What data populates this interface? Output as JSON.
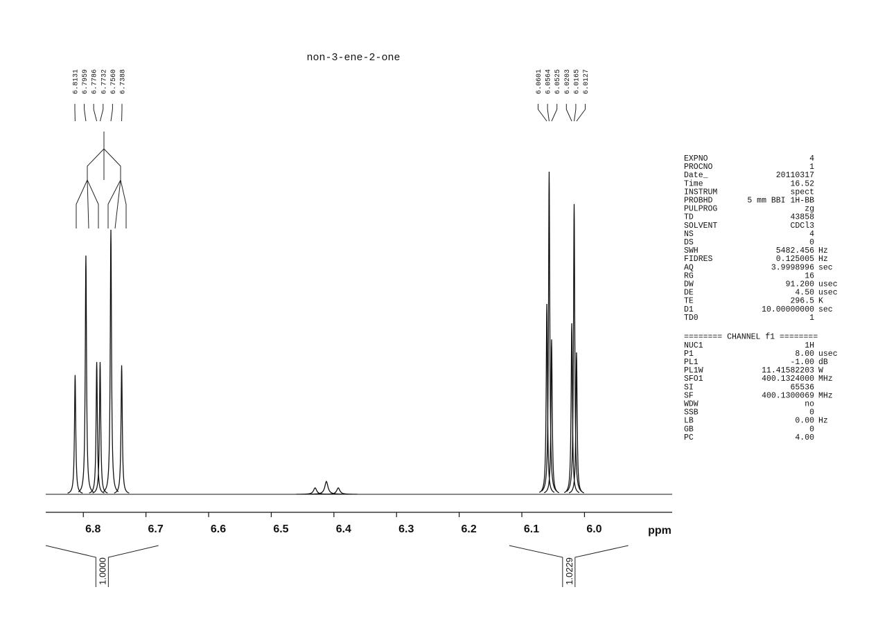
{
  "chart_data": {
    "type": "nmr",
    "title": "non-3-ene-2-one",
    "xlabel": "ppm",
    "xlim": [
      6.86,
      5.86
    ],
    "xticks": [
      6.8,
      6.7,
      6.6,
      6.5,
      6.4,
      6.3,
      6.2,
      6.1,
      {
        "value": 6,
        "label": "6.0"
      }
    ],
    "ylim": [
      0,
      100
    ],
    "color": "#111111",
    "series": [
      {
        "x": [
          6.8131,
          6.7959,
          6.7786,
          6.7732,
          6.756,
          6.7388,
          6.0601,
          6.0564,
          6.0525,
          6.0203,
          6.0165,
          6.0127
        ],
        "x_labels": [
          "6.8131",
          "6.7959",
          "6.7786",
          "6.7732",
          "6.7560",
          "6.7388",
          "6.0601",
          "6.0564",
          "6.0525",
          "6.0203",
          "6.0165",
          "6.0127"
        ],
        "values": [
          37,
          74,
          41,
          41,
          82,
          40,
          59,
          100,
          48,
          53,
          90,
          44
        ]
      },
      {
        "x": [
          6.43,
          6.412,
          6.393
        ],
        "values": [
          2,
          4,
          2
        ]
      }
    ],
    "integrals": [
      {
        "range": [
          6.86,
          6.68
        ],
        "value": 1,
        "label": "1.0000"
      },
      {
        "range": [
          6.12,
          5.93
        ],
        "value": 1.0229,
        "label": "1.0229"
      }
    ]
  },
  "parameters": {
    "acquisition": [
      [
        "EXPNO",
        "4",
        ""
      ],
      [
        "PROCNO",
        "1",
        ""
      ],
      [
        "Date_",
        "20110317",
        ""
      ],
      [
        "Time",
        "16.52",
        ""
      ],
      [
        "INSTRUM",
        "spect",
        ""
      ],
      [
        "PROBHD",
        "5 mm BBI 1H-BB",
        ""
      ],
      [
        "PULPROG",
        "zg",
        ""
      ],
      [
        "TD",
        "43858",
        ""
      ],
      [
        "SOLVENT",
        "CDCl3",
        ""
      ],
      [
        "NS",
        "4",
        ""
      ],
      [
        "DS",
        "0",
        ""
      ],
      [
        "SWH",
        "5482.456",
        "Hz"
      ],
      [
        "FIDRES",
        "0.125005",
        "Hz"
      ],
      [
        "AQ",
        "3.9998996",
        "sec"
      ],
      [
        "RG",
        "16",
        ""
      ],
      [
        "DW",
        "91.200",
        "usec"
      ],
      [
        "DE",
        "4.50",
        "usec"
      ],
      [
        "TE",
        "296.5",
        "K"
      ],
      [
        "D1",
        "10.00000000",
        "sec"
      ],
      [
        "TD0",
        "1",
        ""
      ]
    ],
    "channel_header": "======== CHANNEL f1 ========",
    "channel": [
      [
        "NUC1",
        "1H",
        ""
      ],
      [
        "P1",
        "8.00",
        "usec"
      ],
      [
        "PL1",
        "-1.00",
        "dB"
      ],
      [
        "PL1W",
        "11.41582203",
        "W"
      ],
      [
        "SFO1",
        "400.1324000",
        "MHz"
      ],
      [
        "SI",
        "65536",
        ""
      ],
      [
        "SF",
        "400.1300069",
        "MHz"
      ],
      [
        "WDW",
        "no",
        ""
      ],
      [
        "SSB",
        "0",
        ""
      ],
      [
        "LB",
        "0.00",
        "Hz"
      ],
      [
        "GB",
        "0",
        ""
      ],
      [
        "PC",
        "4.00",
        ""
      ]
    ]
  }
}
